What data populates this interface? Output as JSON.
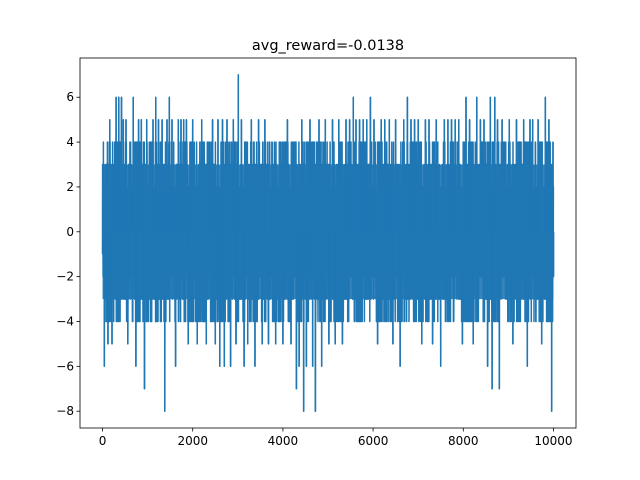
{
  "chart_data": {
    "type": "line",
    "title": "avg_reward=-0.0138",
    "xlabel": "",
    "ylabel": "",
    "xlim": [
      -500,
      10500
    ],
    "ylim": [
      -8.75,
      7.75
    ],
    "grid": false,
    "legend": "none",
    "x_ticks": [
      0,
      2000,
      4000,
      6000,
      8000,
      10000
    ],
    "y_ticks": [
      -8,
      -6,
      -4,
      -2,
      0,
      2,
      4,
      6
    ],
    "series": [
      {
        "color": "#1f77b4",
        "n_points": 10000,
        "dense_band": [
          -3,
          3
        ],
        "frequent_range": [
          -4,
          4
        ],
        "spikes": [
          {
            "x": 40,
            "y": -6
          },
          {
            "x": 90,
            "y": 3
          },
          {
            "x": 120,
            "y": -5
          },
          {
            "x": 160,
            "y": 5
          },
          {
            "x": 210,
            "y": -5
          },
          {
            "x": 270,
            "y": 4
          },
          {
            "x": 300,
            "y": 6
          },
          {
            "x": 360,
            "y": 6
          },
          {
            "x": 420,
            "y": 6
          },
          {
            "x": 460,
            "y": 5
          },
          {
            "x": 520,
            "y": 5
          },
          {
            "x": 560,
            "y": -5
          },
          {
            "x": 620,
            "y": 4
          },
          {
            "x": 680,
            "y": 6
          },
          {
            "x": 740,
            "y": -6
          },
          {
            "x": 800,
            "y": 5
          },
          {
            "x": 860,
            "y": 5
          },
          {
            "x": 930,
            "y": -7
          },
          {
            "x": 980,
            "y": 5
          },
          {
            "x": 1040,
            "y": 4
          },
          {
            "x": 1120,
            "y": 5
          },
          {
            "x": 1180,
            "y": 6
          },
          {
            "x": 1240,
            "y": 5
          },
          {
            "x": 1320,
            "y": 5
          },
          {
            "x": 1380,
            "y": -8
          },
          {
            "x": 1430,
            "y": 5
          },
          {
            "x": 1480,
            "y": 6
          },
          {
            "x": 1540,
            "y": 5
          },
          {
            "x": 1620,
            "y": -6
          },
          {
            "x": 1680,
            "y": 5
          },
          {
            "x": 1740,
            "y": 5
          },
          {
            "x": 1800,
            "y": 5
          },
          {
            "x": 1860,
            "y": 5
          },
          {
            "x": 1900,
            "y": -5
          },
          {
            "x": 1940,
            "y": 4
          },
          {
            "x": 2000,
            "y": 5
          },
          {
            "x": 2100,
            "y": -5
          },
          {
            "x": 2200,
            "y": 5
          },
          {
            "x": 2300,
            "y": -5
          },
          {
            "x": 2380,
            "y": 4
          },
          {
            "x": 2440,
            "y": 5
          },
          {
            "x": 2500,
            "y": -5
          },
          {
            "x": 2560,
            "y": 5
          },
          {
            "x": 2600,
            "y": -6
          },
          {
            "x": 2660,
            "y": 5
          },
          {
            "x": 2700,
            "y": -6
          },
          {
            "x": 2760,
            "y": 5
          },
          {
            "x": 2840,
            "y": -6
          },
          {
            "x": 2900,
            "y": 5
          },
          {
            "x": 2960,
            "y": -5
          },
          {
            "x": 3010,
            "y": 7
          },
          {
            "x": 3080,
            "y": 5
          },
          {
            "x": 3140,
            "y": -6
          },
          {
            "x": 3220,
            "y": -5
          },
          {
            "x": 3300,
            "y": 5
          },
          {
            "x": 3380,
            "y": -6
          },
          {
            "x": 3460,
            "y": 5
          },
          {
            "x": 3540,
            "y": -5
          },
          {
            "x": 3600,
            "y": 5
          },
          {
            "x": 3680,
            "y": -5
          },
          {
            "x": 3760,
            "y": 4
          },
          {
            "x": 3840,
            "y": -5
          },
          {
            "x": 3920,
            "y": 4
          },
          {
            "x": 4000,
            "y": -5
          },
          {
            "x": 4100,
            "y": 5
          },
          {
            "x": 4180,
            "y": -5
          },
          {
            "x": 4260,
            "y": 4
          },
          {
            "x": 4300,
            "y": -7
          },
          {
            "x": 4360,
            "y": -6
          },
          {
            "x": 4420,
            "y": 5
          },
          {
            "x": 4460,
            "y": -8
          },
          {
            "x": 4520,
            "y": -6
          },
          {
            "x": 4600,
            "y": 5
          },
          {
            "x": 4660,
            "y": -6
          },
          {
            "x": 4720,
            "y": -8
          },
          {
            "x": 4800,
            "y": 5
          },
          {
            "x": 4860,
            "y": -6
          },
          {
            "x": 4940,
            "y": 5
          },
          {
            "x": 5020,
            "y": -5
          },
          {
            "x": 5100,
            "y": 5
          },
          {
            "x": 5160,
            "y": -5
          },
          {
            "x": 5240,
            "y": 5
          },
          {
            "x": 5320,
            "y": -5
          },
          {
            "x": 5400,
            "y": 5
          },
          {
            "x": 5480,
            "y": 5
          },
          {
            "x": 5560,
            "y": 6
          },
          {
            "x": 5620,
            "y": 5
          },
          {
            "x": 5700,
            "y": 5
          },
          {
            "x": 5780,
            "y": 5
          },
          {
            "x": 5860,
            "y": 5
          },
          {
            "x": 5940,
            "y": 6
          },
          {
            "x": 6020,
            "y": 5
          },
          {
            "x": 6100,
            "y": -5
          },
          {
            "x": 6180,
            "y": 5
          },
          {
            "x": 6260,
            "y": 5
          },
          {
            "x": 6360,
            "y": 5
          },
          {
            "x": 6440,
            "y": -5
          },
          {
            "x": 6500,
            "y": 5
          },
          {
            "x": 6600,
            "y": -6
          },
          {
            "x": 6680,
            "y": 5
          },
          {
            "x": 6760,
            "y": 6
          },
          {
            "x": 6840,
            "y": 5
          },
          {
            "x": 6920,
            "y": 5
          },
          {
            "x": 7000,
            "y": 5
          },
          {
            "x": 7080,
            "y": -5
          },
          {
            "x": 7160,
            "y": 5
          },
          {
            "x": 7240,
            "y": 5
          },
          {
            "x": 7320,
            "y": -5
          },
          {
            "x": 7400,
            "y": 5
          },
          {
            "x": 7500,
            "y": -6
          },
          {
            "x": 7580,
            "y": 5
          },
          {
            "x": 7660,
            "y": 5
          },
          {
            "x": 7740,
            "y": 5
          },
          {
            "x": 7820,
            "y": 5
          },
          {
            "x": 7900,
            "y": 5
          },
          {
            "x": 7980,
            "y": -5
          },
          {
            "x": 8060,
            "y": 6
          },
          {
            "x": 8140,
            "y": 5
          },
          {
            "x": 8220,
            "y": -5
          },
          {
            "x": 8300,
            "y": 6
          },
          {
            "x": 8380,
            "y": 5
          },
          {
            "x": 8460,
            "y": 5
          },
          {
            "x": 8540,
            "y": -6
          },
          {
            "x": 8600,
            "y": 6
          },
          {
            "x": 8640,
            "y": -7
          },
          {
            "x": 8700,
            "y": 6
          },
          {
            "x": 8760,
            "y": 5
          },
          {
            "x": 8800,
            "y": -7
          },
          {
            "x": 8860,
            "y": 5
          },
          {
            "x": 8940,
            "y": 4
          },
          {
            "x": 9020,
            "y": 5
          },
          {
            "x": 9100,
            "y": -5
          },
          {
            "x": 9180,
            "y": 5
          },
          {
            "x": 9260,
            "y": 4
          },
          {
            "x": 9340,
            "y": 5
          },
          {
            "x": 9420,
            "y": -6
          },
          {
            "x": 9480,
            "y": 5
          },
          {
            "x": 9540,
            "y": 5
          },
          {
            "x": 9600,
            "y": 4
          },
          {
            "x": 9660,
            "y": 5
          },
          {
            "x": 9740,
            "y": -5
          },
          {
            "x": 9820,
            "y": 6
          },
          {
            "x": 9900,
            "y": 5
          },
          {
            "x": 9960,
            "y": -8
          },
          {
            "x": 9990,
            "y": 4
          },
          {
            "x": 10000,
            "y": -2
          }
        ]
      }
    ]
  }
}
